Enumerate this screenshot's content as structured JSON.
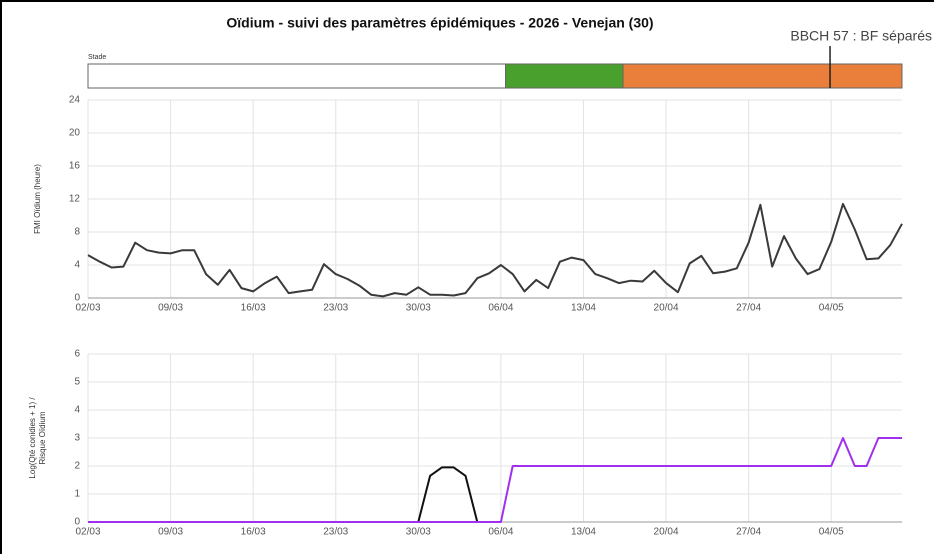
{
  "title": "Oïdium - suivi des paramètres épidémiques - 2026 - Venejan (30)",
  "stage": {
    "label": "Stade",
    "segments": [
      {
        "color": "#ffffff",
        "start": 0,
        "end": 35.4
      },
      {
        "color": "#4aa02c",
        "start": 35.4,
        "end": 45.35
      },
      {
        "color": "#ea7f3c",
        "start": 45.35,
        "end": 69
      }
    ],
    "marker": {
      "at": 62.9,
      "label": "BBCH 57 : BF séparés"
    }
  },
  "chart_data": [
    {
      "type": "line",
      "ylabel": [
        "FMI Oïdium (heure)"
      ],
      "categories": [
        "02/03",
        null,
        null,
        null,
        null,
        null,
        null,
        "09/03",
        null,
        null,
        null,
        null,
        null,
        null,
        "16/03",
        null,
        null,
        null,
        null,
        null,
        null,
        "23/03",
        null,
        null,
        null,
        null,
        null,
        null,
        "30/03",
        null,
        null,
        null,
        null,
        null,
        null,
        "06/04",
        null,
        null,
        null,
        null,
        null,
        null,
        "13/04",
        null,
        null,
        null,
        null,
        null,
        null,
        "20/04",
        null,
        null,
        null,
        null,
        null,
        null,
        "27/04",
        null,
        null,
        null,
        null,
        null,
        null,
        "04/05",
        null,
        null,
        null,
        null,
        null,
        null
      ],
      "series": [
        {
          "color": "#3a3a3a",
          "values": [
            5.2,
            4.4,
            3.7,
            3.8,
            6.7,
            5.8,
            5.5,
            5.4,
            5.8,
            5.8,
            2.9,
            1.6,
            3.4,
            1.2,
            0.8,
            1.8,
            2.6,
            0.6,
            0.8,
            1.0,
            4.1,
            2.9,
            2.3,
            1.5,
            0.4,
            0.2,
            0.6,
            0.4,
            1.3,
            0.4,
            0.4,
            0.3,
            0.6,
            2.4,
            3.0,
            4.0,
            2.9,
            0.8,
            2.2,
            1.2,
            4.4,
            4.9,
            4.6,
            2.9,
            2.4,
            1.8,
            2.1,
            2.0,
            3.3,
            1.8,
            0.7,
            4.2,
            5.1,
            3.0,
            3.2,
            3.6,
            6.7,
            11.3,
            3.8,
            7.5,
            4.8,
            2.9,
            3.5,
            6.8,
            11.4,
            8.3,
            4.7,
            4.8,
            6.4,
            9.0
          ]
        }
      ],
      "ylim": [
        0,
        24
      ],
      "yticks": [
        0,
        4,
        8,
        12,
        16,
        20,
        24
      ],
      "grid": true
    },
    {
      "type": "line",
      "ylabel": [
        "Log(Qté conidies + 1) /",
        "Risque Oïdium"
      ],
      "categories": [
        "02/03",
        null,
        null,
        null,
        null,
        null,
        null,
        "09/03",
        null,
        null,
        null,
        null,
        null,
        null,
        "16/03",
        null,
        null,
        null,
        null,
        null,
        null,
        "23/03",
        null,
        null,
        null,
        null,
        null,
        null,
        "30/03",
        null,
        null,
        null,
        null,
        null,
        null,
        "06/04",
        null,
        null,
        null,
        null,
        null,
        null,
        "13/04",
        null,
        null,
        null,
        null,
        null,
        null,
        "20/04",
        null,
        null,
        null,
        null,
        null,
        null,
        "27/04",
        null,
        null,
        null,
        null,
        null,
        null,
        "04/05",
        null,
        null,
        null,
        null,
        null,
        null
      ],
      "series": [
        {
          "color": "#111111",
          "values": [
            null,
            null,
            null,
            null,
            null,
            null,
            null,
            null,
            null,
            null,
            null,
            null,
            null,
            null,
            null,
            null,
            null,
            null,
            null,
            null,
            null,
            null,
            null,
            null,
            null,
            null,
            null,
            null,
            0,
            1.65,
            1.95,
            1.95,
            1.65,
            0,
            null,
            null,
            null,
            null,
            null,
            null,
            null,
            null,
            null,
            null,
            null,
            null,
            null,
            null,
            null,
            null,
            null,
            null,
            null,
            null,
            null,
            null,
            null,
            null,
            null,
            null,
            null,
            null,
            null,
            null,
            null,
            null,
            null,
            null,
            null,
            null
          ]
        },
        {
          "color": "#a030f0",
          "values": [
            0,
            0,
            0,
            0,
            0,
            0,
            0,
            0,
            0,
            0,
            0,
            0,
            0,
            0,
            0,
            0,
            0,
            0,
            0,
            0,
            0,
            0,
            0,
            0,
            0,
            0,
            0,
            0,
            0,
            0,
            0,
            0,
            0,
            0,
            0,
            0,
            2,
            2,
            2,
            2,
            2,
            2,
            2,
            2,
            2,
            2,
            2,
            2,
            2,
            2,
            2,
            2,
            2,
            2,
            2,
            2,
            2,
            2,
            2,
            2,
            2,
            2,
            2,
            2,
            3,
            2,
            2,
            3,
            3,
            3
          ]
        }
      ],
      "ylim": [
        0,
        6
      ],
      "yticks": [
        0,
        1,
        2,
        3,
        4,
        5,
        6
      ],
      "grid": true
    }
  ]
}
